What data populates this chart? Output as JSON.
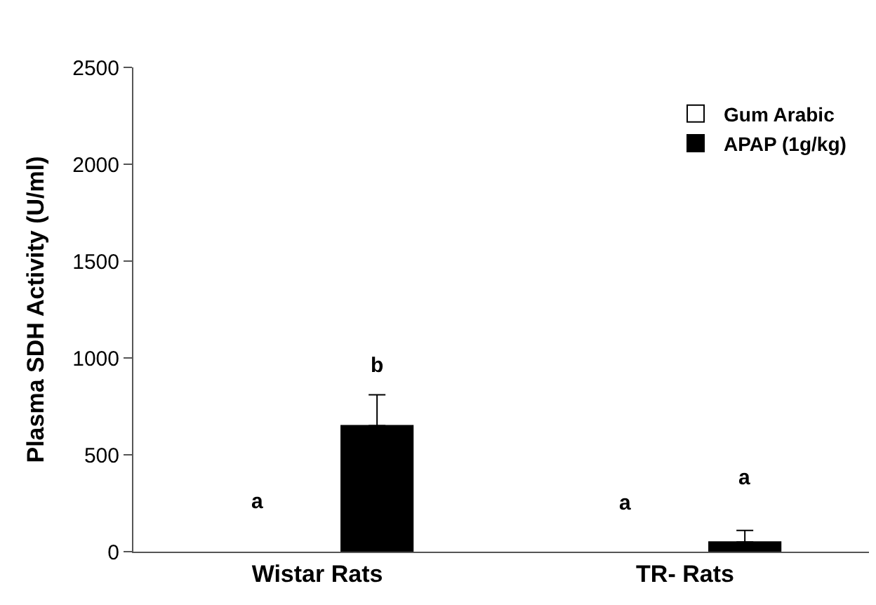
{
  "chart_data": {
    "type": "bar",
    "ylabel": "Plasma SDH Activity (U/ml)",
    "categories": [
      "Wistar Rats",
      "TR- Rats"
    ],
    "series": [
      {
        "name": "Gum Arabic",
        "color": "#ffffff",
        "values": [
          null,
          null
        ]
      },
      {
        "name": "APAP (1g/kg)",
        "color": "#000000",
        "values": [
          650,
          50
        ],
        "errors": [
          [
            650,
            810
          ],
          [
            50,
            110
          ]
        ]
      }
    ],
    "ylim": [
      0,
      2500
    ],
    "yticks": [
      0,
      500,
      1000,
      1500,
      2000,
      2500
    ],
    "annotations": [
      "a",
      "b",
      "a",
      "a"
    ],
    "legend": "top right"
  }
}
